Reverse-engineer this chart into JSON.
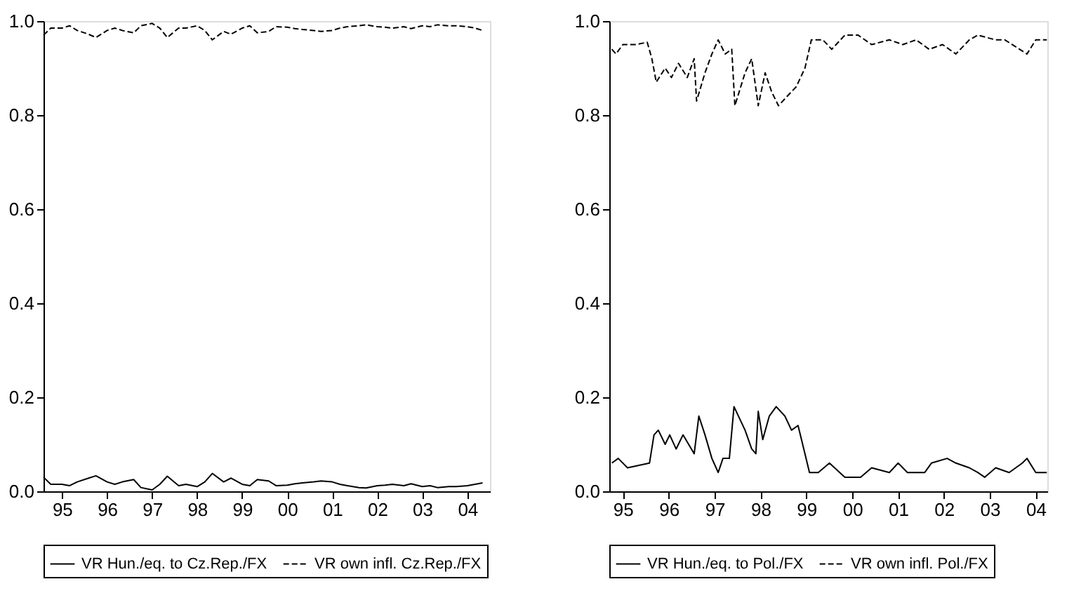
{
  "chart_data": [
    {
      "type": "line",
      "x": [
        "1995-02",
        "1995-04",
        "1995-07",
        "1995-09",
        "1995-11",
        "1996-02",
        "1996-04",
        "1996-07",
        "1996-09",
        "1996-11",
        "1997-02",
        "1997-04",
        "1997-07",
        "1997-09",
        "1997-11",
        "1998-02",
        "1998-04",
        "1998-07",
        "1998-09",
        "1998-11",
        "1999-02",
        "1999-04",
        "1999-07",
        "1999-09",
        "1999-11",
        "2000-02",
        "2000-04",
        "2000-07",
        "2000-09",
        "2000-11",
        "2001-02",
        "2001-04",
        "2001-07",
        "2001-09",
        "2001-11",
        "2002-02",
        "2002-04",
        "2002-07",
        "2002-09",
        "2002-11",
        "2003-02",
        "2003-04",
        "2003-07",
        "2003-09",
        "2003-11",
        "2004-02",
        "2004-04",
        "2004-07",
        "2004-09",
        "2004-11"
      ],
      "series": [
        {
          "name": "VR Hun./eq. to Cz.Rep./FX",
          "color": "#000000",
          "line_style": "solid",
          "values": [
            0.03,
            0.015,
            0.015,
            0.012,
            0.02,
            0.028,
            0.033,
            0.02,
            0.015,
            0.02,
            0.025,
            0.008,
            0.003,
            0.015,
            0.032,
            0.012,
            0.015,
            0.01,
            0.02,
            0.038,
            0.02,
            0.028,
            0.015,
            0.012,
            0.025,
            0.022,
            0.012,
            0.013,
            0.016,
            0.018,
            0.02,
            0.022,
            0.02,
            0.015,
            0.012,
            0.008,
            0.007,
            0.012,
            0.013,
            0.015,
            0.012,
            0.016,
            0.01,
            0.012,
            0.008,
            0.01,
            0.01,
            0.012,
            0.015,
            0.018
          ]
        },
        {
          "name": "VR own infl. Cz.Rep./FX",
          "color": "#000000",
          "line_style": "dashed",
          "values": [
            0.97,
            0.985,
            0.985,
            0.99,
            0.98,
            0.972,
            0.965,
            0.98,
            0.985,
            0.98,
            0.975,
            0.99,
            0.995,
            0.985,
            0.965,
            0.985,
            0.985,
            0.99,
            0.98,
            0.96,
            0.978,
            0.972,
            0.985,
            0.99,
            0.975,
            0.978,
            0.988,
            0.987,
            0.984,
            0.982,
            0.98,
            0.978,
            0.98,
            0.985,
            0.988,
            0.99,
            0.992,
            0.988,
            0.987,
            0.985,
            0.988,
            0.984,
            0.99,
            0.988,
            0.992,
            0.99,
            0.99,
            0.988,
            0.985,
            0.98
          ]
        }
      ],
      "xlim": [
        "1995-02-01",
        "2004-12-31"
      ],
      "xticks": [
        {
          "value": "1995-07-01",
          "label": "95"
        },
        {
          "value": "1996-07-01",
          "label": "96"
        },
        {
          "value": "1997-07-01",
          "label": "97"
        },
        {
          "value": "1998-07-01",
          "label": "98"
        },
        {
          "value": "1999-07-01",
          "label": "99"
        },
        {
          "value": "2000-07-01",
          "label": "00"
        },
        {
          "value": "2001-07-01",
          "label": "01"
        },
        {
          "value": "2002-07-01",
          "label": "02"
        },
        {
          "value": "2003-07-01",
          "label": "03"
        },
        {
          "value": "2004-07-01",
          "label": "04"
        }
      ],
      "ylim": [
        0,
        1
      ],
      "yticks": [
        {
          "value": 0,
          "label": "0.0"
        },
        {
          "value": 0.2,
          "label": "0.2"
        },
        {
          "value": 0.4,
          "label": "0.4"
        },
        {
          "value": 0.6,
          "label": "0.6"
        },
        {
          "value": 0.8,
          "label": "0.8"
        },
        {
          "value": 1,
          "label": "1.0"
        }
      ],
      "legend": "bottom"
    },
    {
      "type": "line",
      "series": [
        {
          "name": "VR Hun./eq. to Pol./FX",
          "color": "#000000",
          "line_style": "solid",
          "x": [
            "1995-04-04",
            "1995-05-25",
            "1995-08-07",
            "1996-01-29",
            "1996-03-05",
            "1996-04-08",
            "1996-06-02",
            "1996-07-08",
            "1996-08-28",
            "1996-10-22",
            "1997-01-19",
            "1997-02-25",
            "1997-04-15",
            "1997-06-09",
            "1997-07-29",
            "1997-09-05",
            "1997-10-26",
            "1997-12-02",
            "1998-02-28",
            "1998-04-22",
            "1998-05-25",
            "1998-06-13",
            "1998-07-19",
            "1998-09-09",
            "1998-11-03",
            "1999-01-11",
            "1999-03-05",
            "1999-04-26",
            "1999-06-20",
            "1999-07-26",
            "1999-10-04",
            "2000-01-01",
            "2000-05-03",
            "2000-09-05",
            "2000-12-02",
            "2001-04-22",
            "2001-07-01",
            "2001-09-13",
            "2002-01-29",
            "2002-03-23",
            "2002-07-26",
            "2002-10-04",
            "2003-01-19",
            "2003-03-27",
            "2003-05-21",
            "2003-08-17",
            "2003-12-02",
            "2004-03-16",
            "2004-04-22",
            "2004-07-01",
            "2004-09-27"
          ],
          "values": [
            0.06,
            0.07,
            0.05,
            0.06,
            0.12,
            0.13,
            0.1,
            0.12,
            0.09,
            0.12,
            0.08,
            0.16,
            0.12,
            0.07,
            0.04,
            0.07,
            0.07,
            0.18,
            0.13,
            0.09,
            0.08,
            0.17,
            0.11,
            0.16,
            0.18,
            0.16,
            0.13,
            0.14,
            0.08,
            0.04,
            0.04,
            0.06,
            0.03,
            0.03,
            0.05,
            0.04,
            0.06,
            0.04,
            0.04,
            0.06,
            0.07,
            0.06,
            0.05,
            0.04,
            0.03,
            0.05,
            0.04,
            0.06,
            0.07,
            0.04,
            0.04
          ]
        },
        {
          "name": "VR own infl. Pol./FX",
          "color": "#000000",
          "line_style": "dashed",
          "x": [
            "1995-04-04",
            "1995-05-07",
            "1995-07-01",
            "1995-10-15",
            "1996-01-11",
            "1996-02-17",
            "1996-03-23",
            "1996-06-02",
            "1996-07-22",
            "1996-09-16",
            "1996-11-25",
            "1997-01-19",
            "1997-02-07",
            "1997-04-15",
            "1997-06-09",
            "1997-07-29",
            "1997-09-23",
            "1997-11-14",
            "1997-12-09",
            "1998-02-28",
            "1998-04-22",
            "1998-06-13",
            "1998-08-07",
            "1998-09-27",
            "1998-11-21",
            "1999-01-29",
            "1999-04-11",
            "1999-06-20",
            "1999-08-10",
            "1999-11-10",
            "2000-01-19",
            "2000-05-03",
            "2000-08-17",
            "2000-12-02",
            "2001-04-22",
            "2001-08-07",
            "2001-11-21",
            "2002-03-05",
            "2002-06-20",
            "2002-10-04",
            "2003-01-19",
            "2003-03-27",
            "2003-08-17",
            "2003-10-29",
            "2004-04-22",
            "2004-07-01",
            "2004-09-27"
          ],
          "values": [
            0.94,
            0.93,
            0.95,
            0.95,
            0.955,
            0.92,
            0.87,
            0.9,
            0.88,
            0.91,
            0.88,
            0.92,
            0.83,
            0.89,
            0.93,
            0.96,
            0.93,
            0.94,
            0.82,
            0.89,
            0.92,
            0.82,
            0.89,
            0.85,
            0.82,
            0.84,
            0.86,
            0.9,
            0.96,
            0.96,
            0.94,
            0.97,
            0.97,
            0.95,
            0.96,
            0.95,
            0.96,
            0.94,
            0.95,
            0.93,
            0.96,
            0.97,
            0.96,
            0.96,
            0.93,
            0.96,
            0.96
          ]
        }
      ],
      "xlim": [
        "1995-03-15",
        "2004-10-01"
      ],
      "xticks": [
        {
          "value": "1995-07-01",
          "label": "95"
        },
        {
          "value": "1996-07-01",
          "label": "96"
        },
        {
          "value": "1997-07-01",
          "label": "97"
        },
        {
          "value": "1998-07-01",
          "label": "98"
        },
        {
          "value": "1999-07-01",
          "label": "99"
        },
        {
          "value": "2000-07-01",
          "label": "00"
        },
        {
          "value": "2001-07-01",
          "label": "01"
        },
        {
          "value": "2002-07-01",
          "label": "02"
        },
        {
          "value": "2003-07-01",
          "label": "03"
        },
        {
          "value": "2004-07-01",
          "label": "04"
        }
      ],
      "ylim": [
        0,
        1
      ],
      "yticks": [
        {
          "value": 0,
          "label": "0.0"
        },
        {
          "value": 0.2,
          "label": "0.2"
        },
        {
          "value": 0.4,
          "label": "0.4"
        },
        {
          "value": 0.6,
          "label": "0.6"
        },
        {
          "value": 0.8,
          "label": "0.8"
        },
        {
          "value": 1,
          "label": "1.0"
        }
      ],
      "legend": "bottom"
    }
  ]
}
